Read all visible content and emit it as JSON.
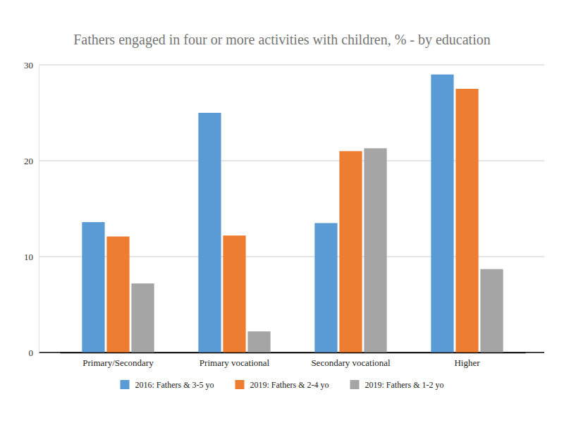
{
  "chart_data": {
    "type": "bar",
    "title": "Fathers engaged in four or more activities with children, % - by education",
    "categories": [
      "Primary/Secondary",
      "Primary vocational",
      "Secondary vocational",
      "Higher"
    ],
    "series": [
      {
        "name": "2016: Fathers & 3-5 yo",
        "color": "#5b9bd5",
        "values": [
          13.6,
          25,
          13.5,
          29
        ]
      },
      {
        "name": "2019: Fathers & 2-4 yo",
        "color": "#ed7d31",
        "values": [
          12.1,
          12.2,
          21,
          27.5
        ]
      },
      {
        "name": "2019: Fathers & 1-2 yo",
        "color": "#a5a5a5",
        "values": [
          7.2,
          2.2,
          21.3,
          8.7
        ]
      }
    ],
    "ylim": [
      0,
      30
    ],
    "yticks": [
      0,
      10,
      20,
      30
    ],
    "grid": true,
    "legend": "bottom"
  }
}
